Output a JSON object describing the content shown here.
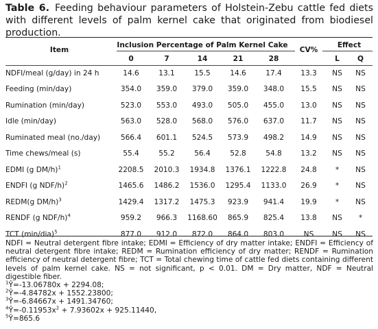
{
  "caption": {
    "label": "Table 6.",
    "text": "Feeding behaviour parameters of Holstein-Zebu cattle fed diets with different levels of palm kernel cake that originated from biodiesel production."
  },
  "header": {
    "item": "Item",
    "inclusion": "Inclusion Percentage of Palm Kernel Cake",
    "cv": "CV%",
    "effect": "Effect",
    "levels": [
      "0",
      "7",
      "14",
      "21",
      "28"
    ],
    "effect_cols": [
      "L",
      "Q"
    ]
  },
  "rows": [
    {
      "name": "NDFI/meal (g/day) in 24 h",
      "sup": "",
      "values": [
        "14.6",
        "13.1",
        "15.5",
        "14.6",
        "17.4",
        "13.3",
        "NS",
        "NS"
      ]
    },
    {
      "name": "Feeding (min/day)",
      "sup": "",
      "values": [
        "354.0",
        "359.0",
        "379.0",
        "359.0",
        "348.0",
        "15.5",
        "NS",
        "NS"
      ]
    },
    {
      "name": "Rumination (min/day)",
      "sup": "",
      "values": [
        "523.0",
        "553.0",
        "493.0",
        "505.0",
        "455.0",
        "13.0",
        "NS",
        "NS"
      ]
    },
    {
      "name": "Idle (min/day)",
      "sup": "",
      "values": [
        "563.0",
        "528.0",
        "568.0",
        "576.0",
        "637.0",
        "11.7",
        "NS",
        "NS"
      ]
    },
    {
      "name": "Ruminated meal (no./day)",
      "sup": "",
      "values": [
        "566.4",
        "601.1",
        "524.5",
        "573.9",
        "498.2",
        "14.9",
        "NS",
        "NS"
      ]
    },
    {
      "name": "Time chews/meal (s)",
      "sup": "",
      "values": [
        "55.4",
        "55.2",
        "56.4",
        "52.8",
        "54.8",
        "13.2",
        "NS",
        "NS"
      ]
    },
    {
      "name": "EDMI (g DM/h)",
      "sup": "1",
      "values": [
        "2208.5",
        "2010.3",
        "1934.8",
        "1376.1",
        "1222.8",
        "24.8",
        "*",
        "NS"
      ]
    },
    {
      "name": "ENDFI (g NDF/h)",
      "sup": "2",
      "values": [
        "1465.6",
        "1486.2",
        "1536.0",
        "1295.4",
        "1133.0",
        "26.9",
        "*",
        "NS"
      ]
    },
    {
      "name": "REDM(g DM/h)",
      "sup": "3",
      "values": [
        "1429.4",
        "1317.2",
        "1475.3",
        "923.9",
        "941.4",
        "19.9",
        "*",
        "NS"
      ]
    },
    {
      "name": "RENDF (g NDF/h)",
      "sup": "4",
      "values": [
        "959.2",
        "966.3",
        "1168.60",
        "865.9",
        "825.4",
        "13.8",
        "NS",
        "*"
      ]
    },
    {
      "name": "TCT (min/dia)",
      "sup": "5",
      "values": [
        "877.0",
        "912.0",
        "872.0",
        "864.0",
        "803.0",
        "NS",
        "NS",
        "NS"
      ]
    }
  ],
  "notes": {
    "abbreviations": "NDFI = Neutral detergent fibre intake; EDMI = Efficiency of dry matter intake; ENDFI = Efficiency of neutral detergent fibre intake; REDM = Rumination efficiency of dry matter; RENDF = Rumination efficiency of neutral detergent fibre; TCT = Total chewing time of cattle fed diets containing different levels of palm kernel cake. NS = not significant, p < 0.01. DM = Dry matter, NDF = Neutral digestible fiber.",
    "eq1": "Ŷ=-13.06780x + 2294.08;",
    "eq2": "Ŷ=-4.84782x + 1552.23800;",
    "eq3": "Ŷ=-6.84667x + 1491.34760;",
    "eq4a": "Ŷ=-0.11953x",
    "eq4b": " + 7.93602x + 925.11440,",
    "eq5": "Ŷ=865.6"
  }
}
